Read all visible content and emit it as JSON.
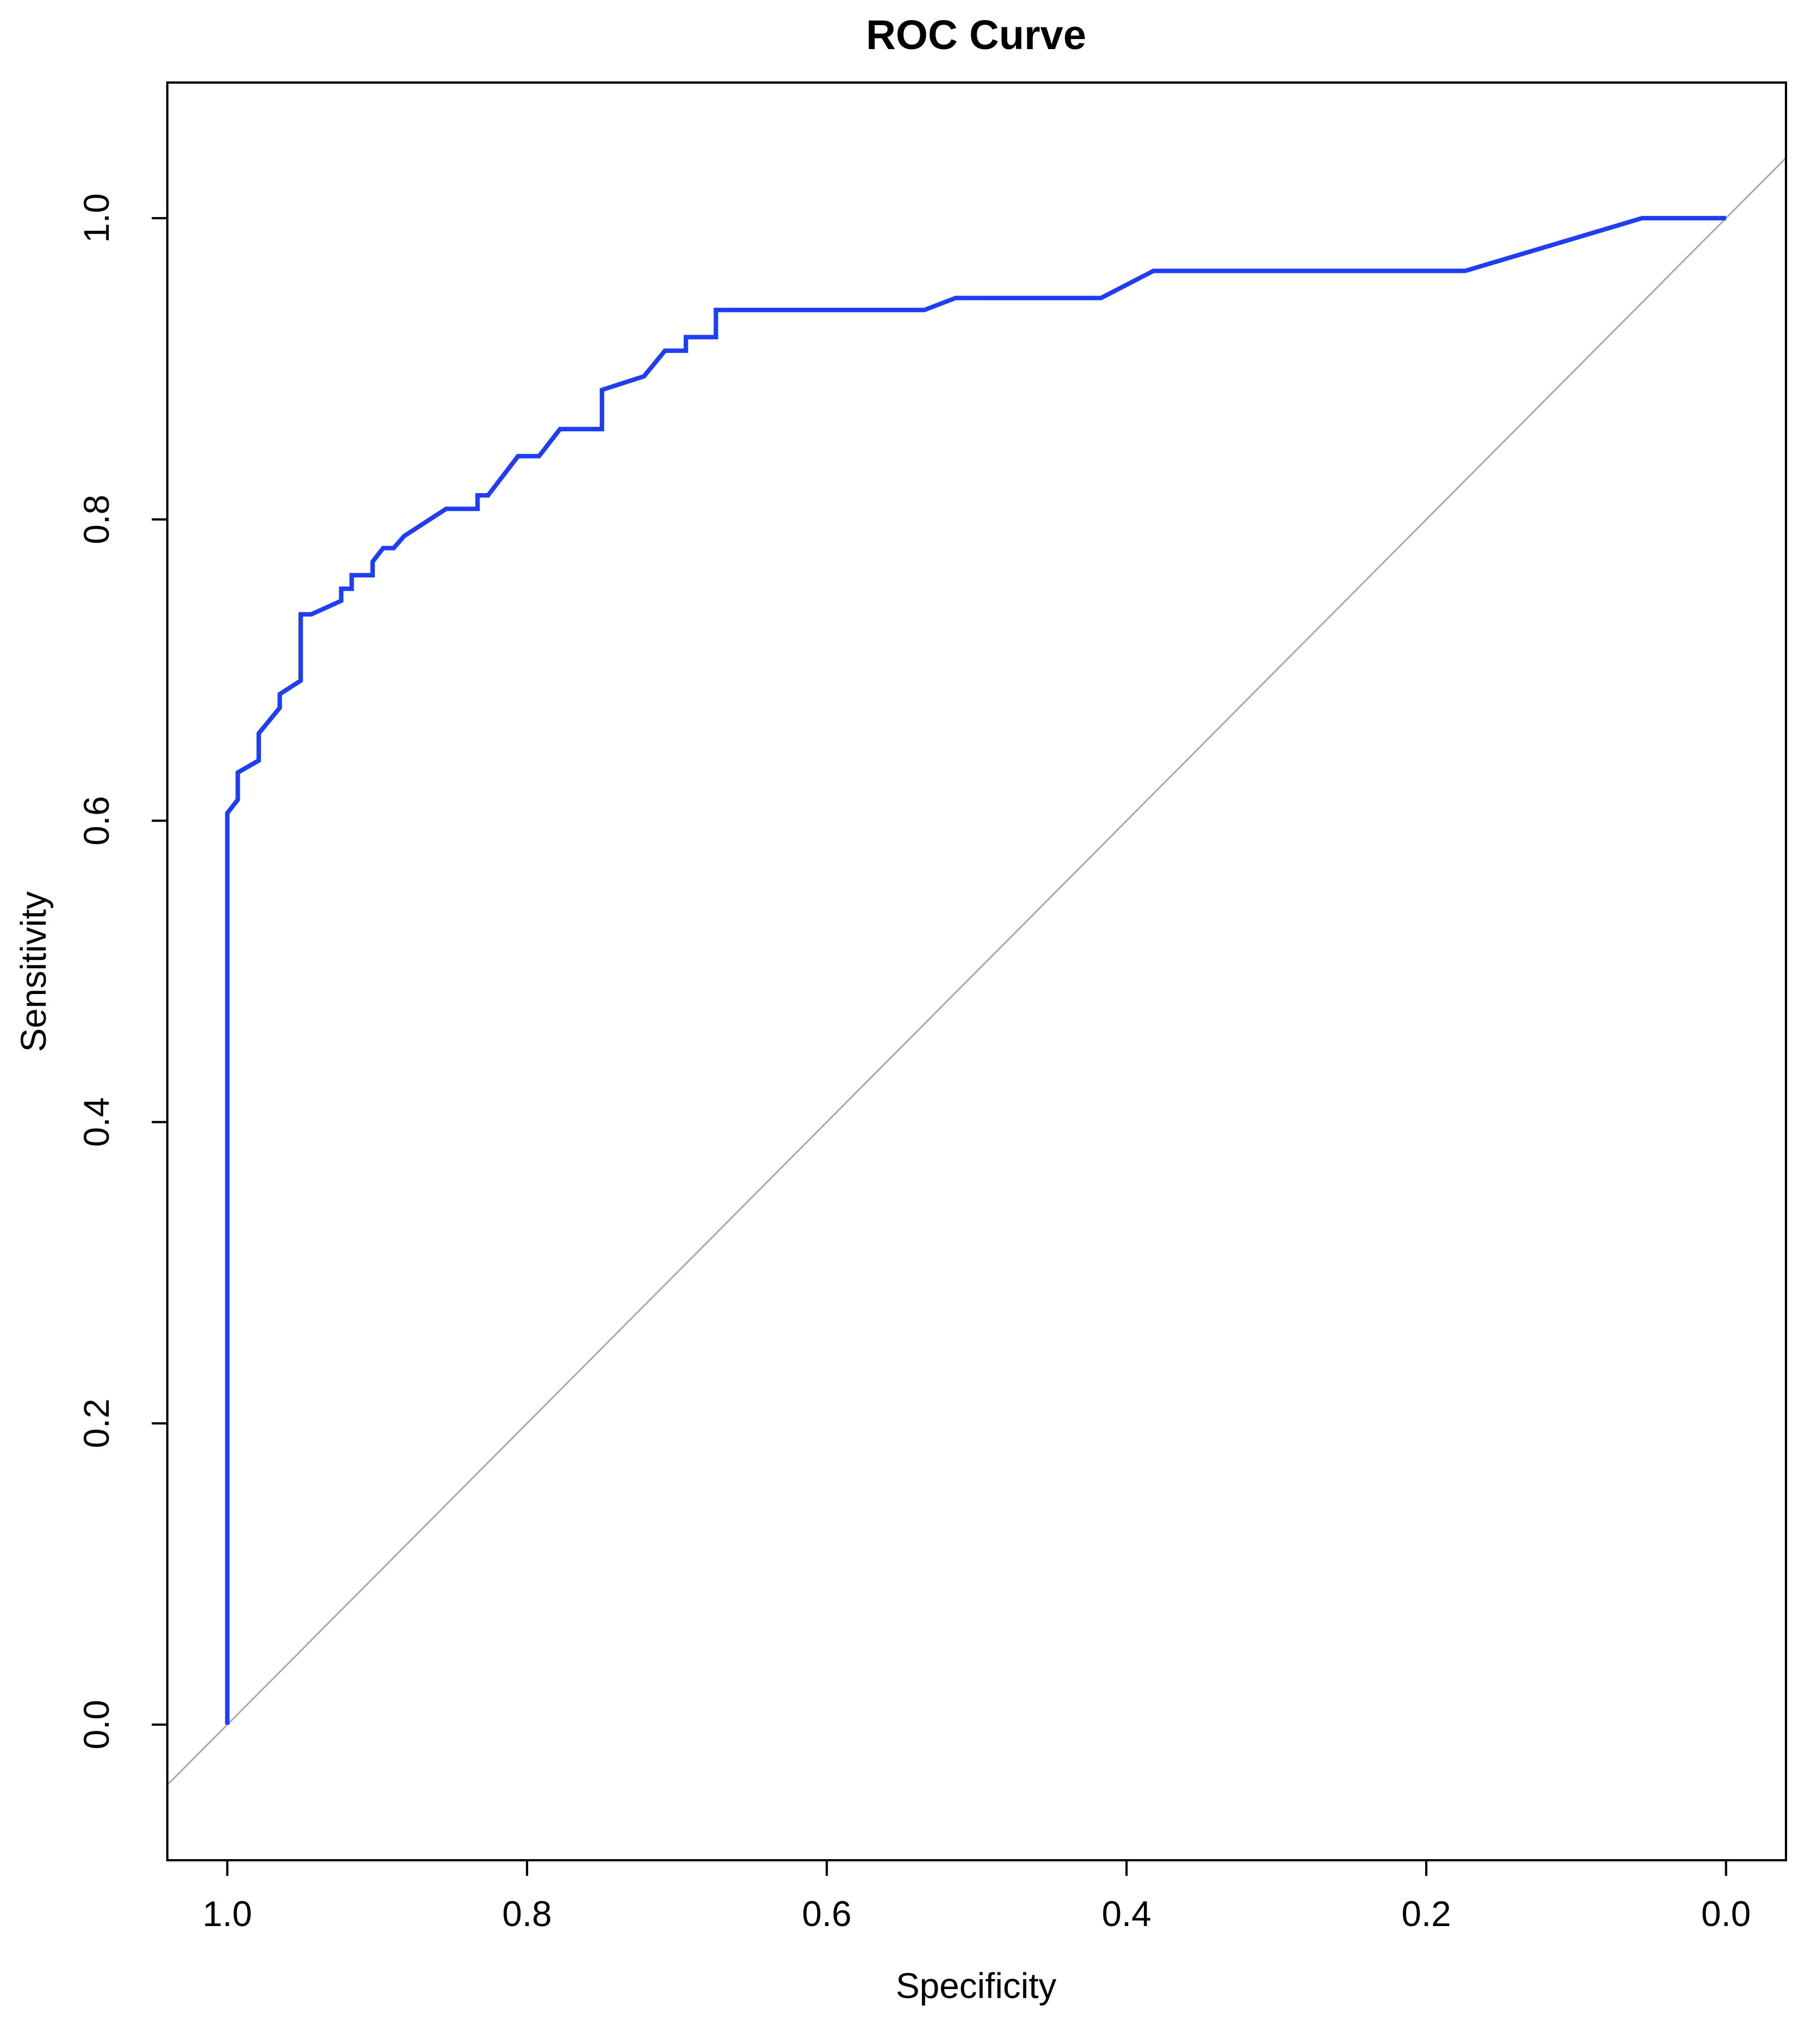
{
  "chart_data": {
    "type": "line",
    "title": "ROC Curve",
    "xlabel": "Specificity",
    "ylabel": "Sensitivity",
    "x_reversed": true,
    "xlim": [
      1.04,
      -0.04
    ],
    "ylim": [
      -0.09,
      1.09
    ],
    "x_ticks": [
      {
        "value": 1.0,
        "label": "1.0"
      },
      {
        "value": 0.8,
        "label": "0.8"
      },
      {
        "value": 0.6,
        "label": "0.6"
      },
      {
        "value": 0.4,
        "label": "0.4"
      },
      {
        "value": 0.2,
        "label": "0.2"
      },
      {
        "value": 0.0,
        "label": "0.0"
      }
    ],
    "y_ticks": [
      {
        "value": 0.0,
        "label": "0.0"
      },
      {
        "value": 0.2,
        "label": "0.2"
      },
      {
        "value": 0.4,
        "label": "0.4"
      },
      {
        "value": 0.6,
        "label": "0.6"
      },
      {
        "value": 0.8,
        "label": "0.8"
      },
      {
        "value": 1.0,
        "label": "1.0"
      }
    ],
    "grid": false,
    "legend": "none",
    "series": [
      {
        "color": "#1f3df2",
        "points": [
          [
            1.0,
            0.0
          ],
          [
            1.0,
            0.605
          ],
          [
            0.993,
            0.614
          ],
          [
            0.993,
            0.632
          ],
          [
            0.979,
            0.64
          ],
          [
            0.979,
            0.658
          ],
          [
            0.965,
            0.675
          ],
          [
            0.965,
            0.684
          ],
          [
            0.951,
            0.693
          ],
          [
            0.951,
            0.737
          ],
          [
            0.944,
            0.737
          ],
          [
            0.924,
            0.746
          ],
          [
            0.924,
            0.754
          ],
          [
            0.917,
            0.754
          ],
          [
            0.917,
            0.763
          ],
          [
            0.903,
            0.763
          ],
          [
            0.903,
            0.772
          ],
          [
            0.896,
            0.781
          ],
          [
            0.889,
            0.781
          ],
          [
            0.882,
            0.789
          ],
          [
            0.854,
            0.807
          ],
          [
            0.833,
            0.807
          ],
          [
            0.833,
            0.816
          ],
          [
            0.826,
            0.816
          ],
          [
            0.806,
            0.842
          ],
          [
            0.792,
            0.842
          ],
          [
            0.778,
            0.86
          ],
          [
            0.75,
            0.86
          ],
          [
            0.75,
            0.886
          ],
          [
            0.722,
            0.895
          ],
          [
            0.708,
            0.912
          ],
          [
            0.694,
            0.912
          ],
          [
            0.694,
            0.921
          ],
          [
            0.674,
            0.921
          ],
          [
            0.674,
            0.939
          ],
          [
            0.535,
            0.939
          ],
          [
            0.514,
            0.947
          ],
          [
            0.417,
            0.947
          ],
          [
            0.382,
            0.965
          ],
          [
            0.174,
            0.965
          ],
          [
            0.056,
            1.0
          ],
          [
            0.0,
            1.0
          ]
        ]
      }
    ],
    "reference_line": {
      "color": "#aaaaaa",
      "points": [
        [
          1.04,
          -0.04
        ],
        [
          -0.04,
          1.04
        ]
      ]
    }
  }
}
